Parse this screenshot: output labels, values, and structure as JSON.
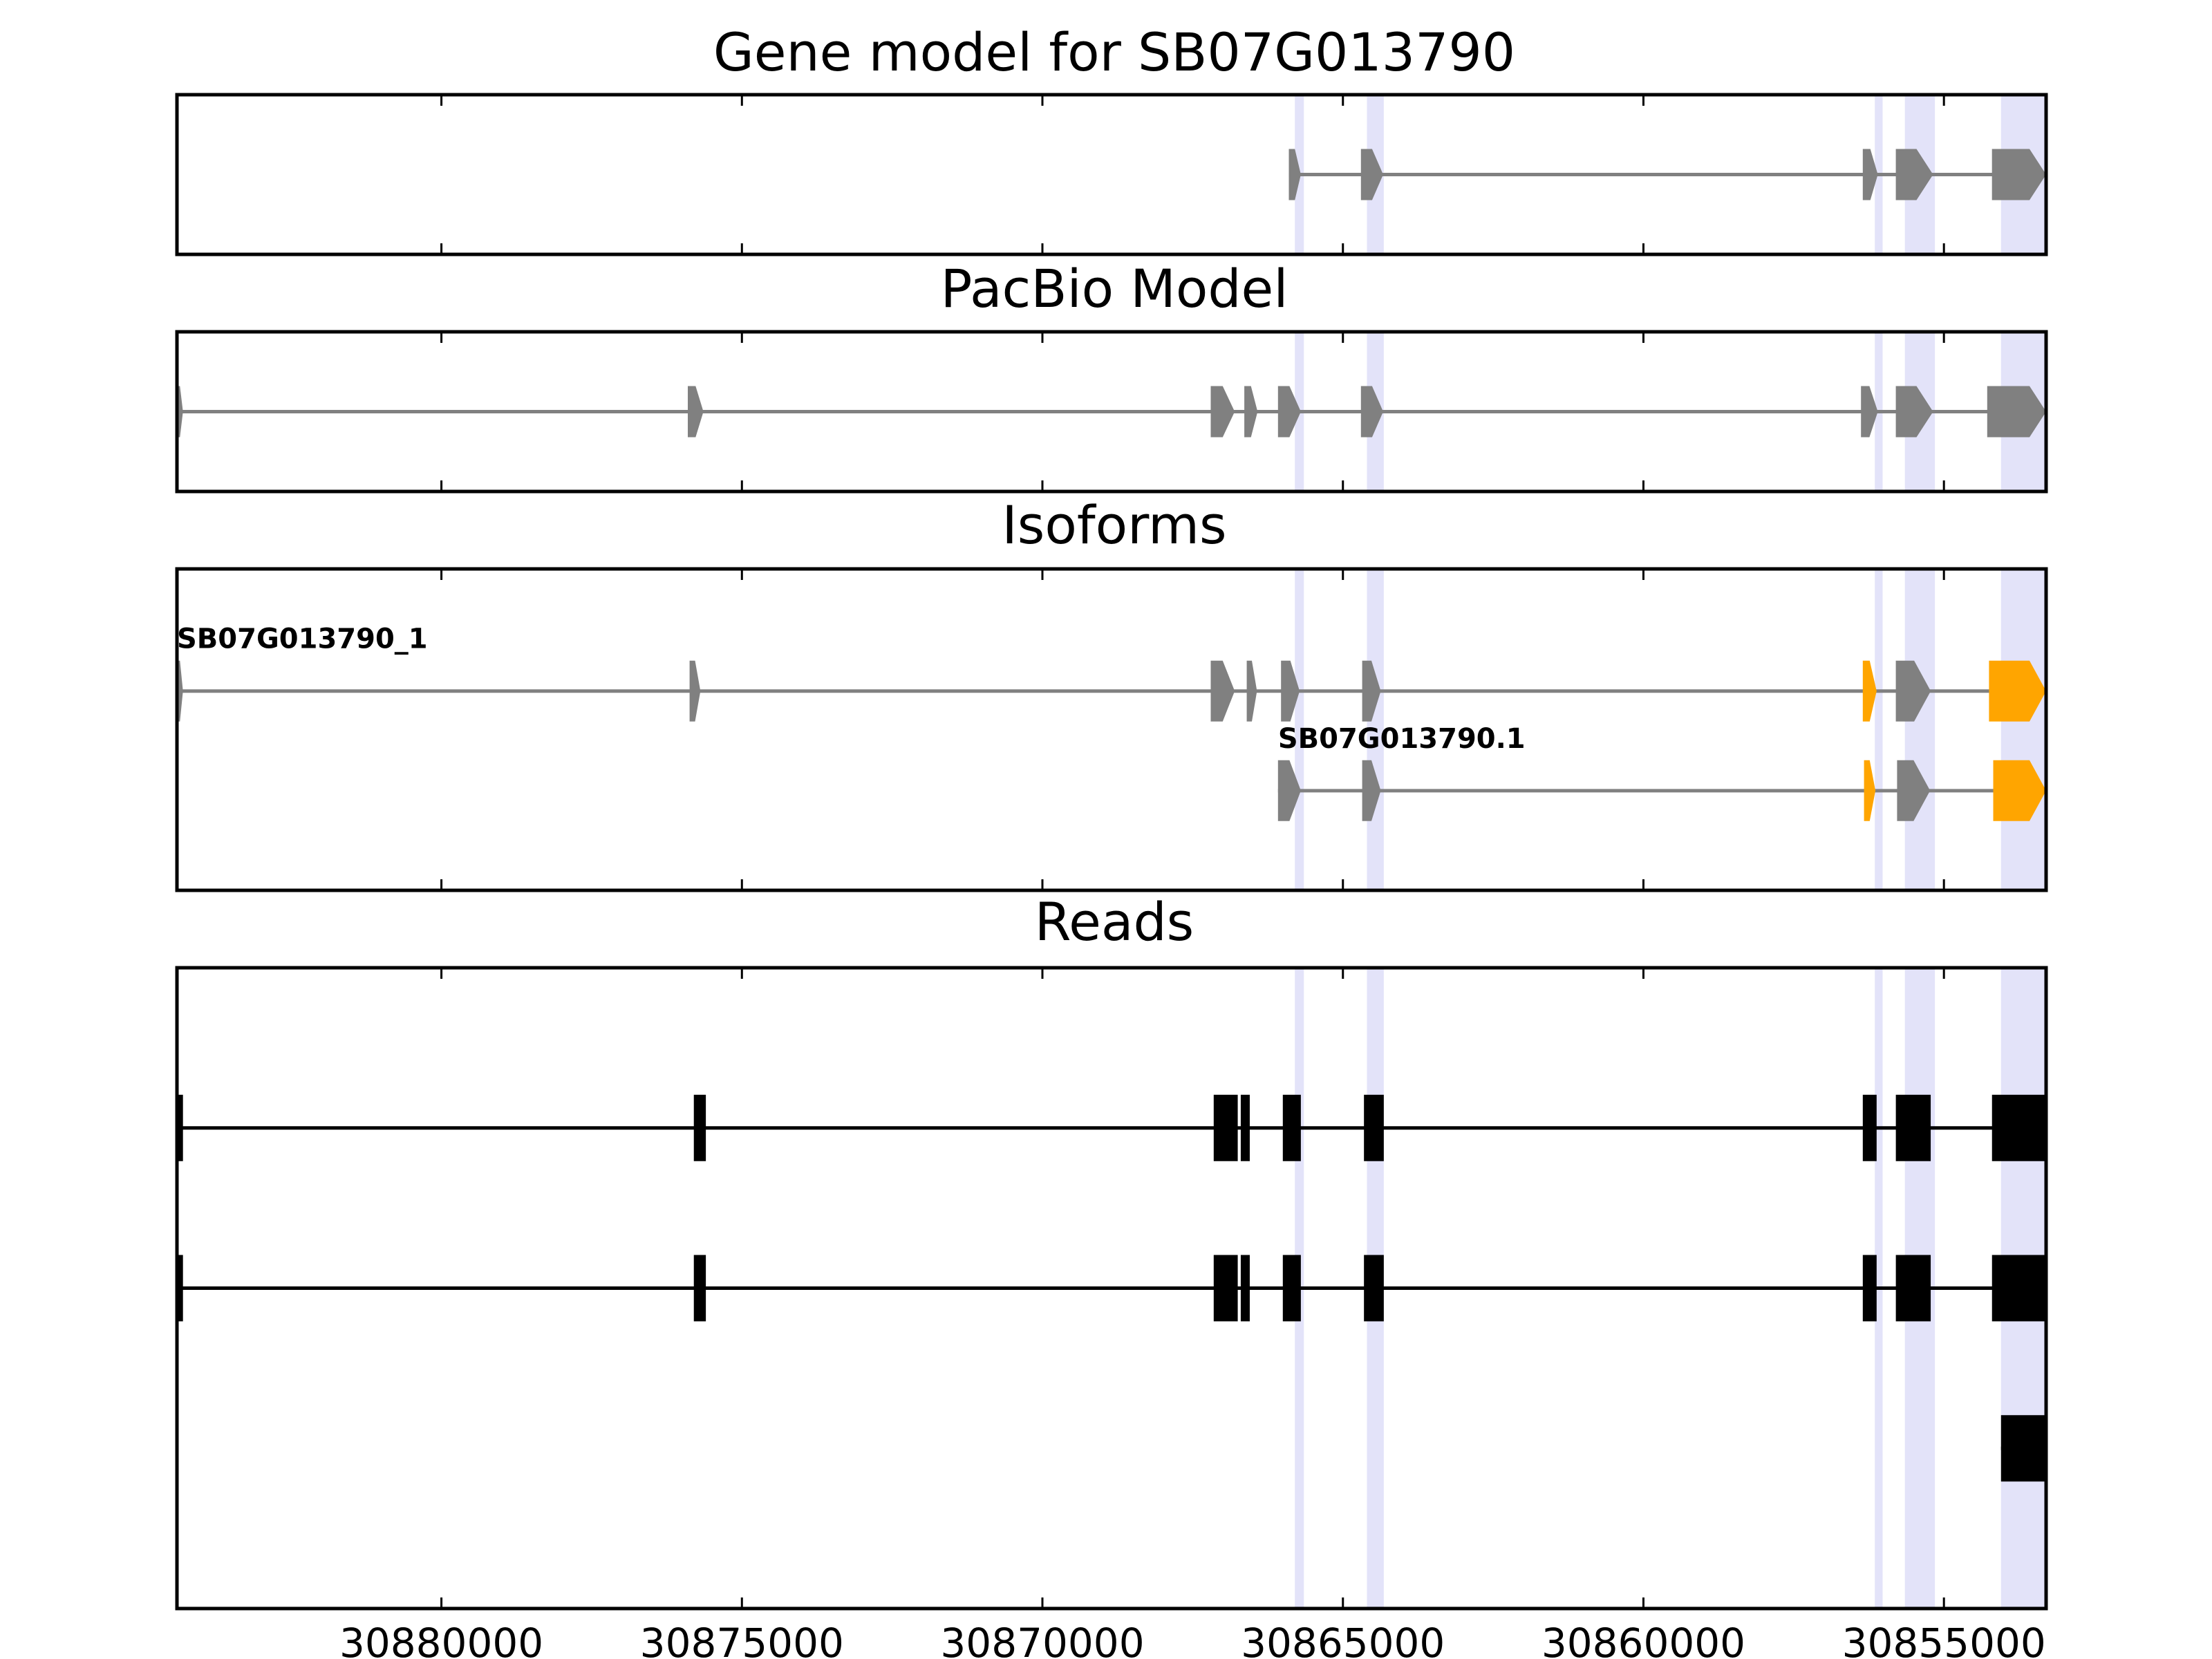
{
  "chart_data": {
    "type": "gene_model_track",
    "gene_id": "SB07G013790",
    "x_axis": {
      "direction": "reversed",
      "xlim": [
        30884400,
        30853300
      ],
      "ticks": [
        30880000,
        30875000,
        30870000,
        30865000,
        30860000,
        30855000
      ],
      "tick_labels": [
        "30880000",
        "30875000",
        "30870000",
        "30865000",
        "30860000",
        "30855000"
      ]
    },
    "colors": {
      "exon_gray": "#808080",
      "intron_gray": "#808080",
      "highlight_exon": "#ffa500",
      "read_black": "#000000",
      "band": "#e3e3f9",
      "frame": "#000000"
    },
    "highlight_bands": [
      [
        30865800,
        30865650
      ],
      [
        30864600,
        30864320
      ],
      [
        30856150,
        30856020
      ],
      [
        30855650,
        30855150
      ],
      [
        30854050,
        30853300
      ]
    ],
    "panels": [
      {
        "title": "Gene model for SB07G013790",
        "ylim": [
          0,
          1
        ],
        "tracks": [
          {
            "y": 0.5,
            "label": "",
            "intron_color": "#808080",
            "exons": [
              {
                "start": 30865900,
                "end": 30865700,
                "color": "#808080"
              },
              {
                "start": 30864700,
                "end": 30864330,
                "color": "#808080"
              },
              {
                "start": 30856350,
                "end": 30856100,
                "color": "#808080"
              },
              {
                "start": 30855800,
                "end": 30855180,
                "color": "#808080"
              },
              {
                "start": 30854200,
                "end": 30853300,
                "color": "#808080"
              }
            ]
          }
        ]
      },
      {
        "title": "PacBio Model",
        "ylim": [
          0,
          1
        ],
        "tracks": [
          {
            "y": 0.5,
            "label": "",
            "intron_color": "#808080",
            "exons": [
              {
                "start": 30884400,
                "end": 30884300,
                "color": "#808080"
              },
              {
                "start": 30875900,
                "end": 30875640,
                "color": "#808080"
              },
              {
                "start": 30867200,
                "end": 30866800,
                "color": "#808080"
              },
              {
                "start": 30866640,
                "end": 30866420,
                "color": "#808080"
              },
              {
                "start": 30866080,
                "end": 30865700,
                "color": "#808080"
              },
              {
                "start": 30864700,
                "end": 30864330,
                "color": "#808080"
              },
              {
                "start": 30856380,
                "end": 30856100,
                "color": "#808080"
              },
              {
                "start": 30855800,
                "end": 30855180,
                "color": "#808080"
              },
              {
                "start": 30854280,
                "end": 30853300,
                "color": "#808080"
              }
            ]
          }
        ]
      },
      {
        "title": "Isoforms",
        "ylim": [
          0,
          1
        ],
        "tracks": [
          {
            "y": 0.62,
            "label": "SB07G013790_1",
            "intron_color": "#808080",
            "exons": [
              {
                "start": 30884400,
                "end": 30884300,
                "color": "#808080"
              },
              {
                "start": 30875870,
                "end": 30875690,
                "color": "#808080"
              },
              {
                "start": 30867200,
                "end": 30866800,
                "color": "#808080"
              },
              {
                "start": 30866600,
                "end": 30866430,
                "color": "#808080"
              },
              {
                "start": 30866030,
                "end": 30865720,
                "color": "#808080"
              },
              {
                "start": 30864680,
                "end": 30864370,
                "color": "#808080"
              },
              {
                "start": 30856350,
                "end": 30856120,
                "color": "#ffa500"
              },
              {
                "start": 30855800,
                "end": 30855220,
                "color": "#808080"
              },
              {
                "start": 30854250,
                "end": 30853300,
                "color": "#ffa500"
              }
            ]
          },
          {
            "y": 0.31,
            "label": "SB07G013790.1",
            "intron_color": "#808080",
            "exons": [
              {
                "start": 30866080,
                "end": 30865700,
                "color": "#808080"
              },
              {
                "start": 30864680,
                "end": 30864370,
                "color": "#808080"
              },
              {
                "start": 30856330,
                "end": 30856140,
                "color": "#ffa500"
              },
              {
                "start": 30855780,
                "end": 30855230,
                "color": "#808080"
              },
              {
                "start": 30854180,
                "end": 30853300,
                "color": "#ffa500"
              }
            ]
          }
        ]
      },
      {
        "title": "Reads",
        "ylim": [
          0,
          4
        ],
        "tracks": [
          {
            "y": 3,
            "label": "",
            "intron_color": "#000000",
            "exons": [
              {
                "start": 30884400,
                "end": 30884300,
                "color": "#000000"
              },
              {
                "start": 30875800,
                "end": 30875600,
                "color": "#000000"
              },
              {
                "start": 30867150,
                "end": 30866750,
                "color": "#000000"
              },
              {
                "start": 30866700,
                "end": 30866550,
                "color": "#000000"
              },
              {
                "start": 30866000,
                "end": 30865700,
                "color": "#000000"
              },
              {
                "start": 30864650,
                "end": 30864320,
                "color": "#000000"
              },
              {
                "start": 30856350,
                "end": 30856120,
                "color": "#000000"
              },
              {
                "start": 30855800,
                "end": 30855220,
                "color": "#000000"
              },
              {
                "start": 30854200,
                "end": 30853300,
                "color": "#000000"
              }
            ]
          },
          {
            "y": 2,
            "label": "",
            "intron_color": "#000000",
            "exons": [
              {
                "start": 30884400,
                "end": 30884300,
                "color": "#000000"
              },
              {
                "start": 30875800,
                "end": 30875600,
                "color": "#000000"
              },
              {
                "start": 30867150,
                "end": 30866750,
                "color": "#000000"
              },
              {
                "start": 30866700,
                "end": 30866550,
                "color": "#000000"
              },
              {
                "start": 30866000,
                "end": 30865700,
                "color": "#000000"
              },
              {
                "start": 30864650,
                "end": 30864320,
                "color": "#000000"
              },
              {
                "start": 30856350,
                "end": 30856120,
                "color": "#000000"
              },
              {
                "start": 30855800,
                "end": 30855220,
                "color": "#000000"
              },
              {
                "start": 30854200,
                "end": 30853300,
                "color": "#000000"
              }
            ]
          },
          {
            "y": 1,
            "label": "",
            "intron_color": "#000000",
            "exons": [
              {
                "start": 30854050,
                "end": 30853300,
                "color": "#000000"
              }
            ]
          }
        ]
      }
    ]
  }
}
